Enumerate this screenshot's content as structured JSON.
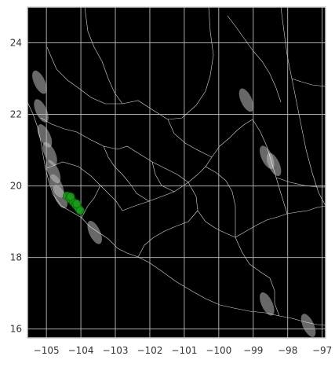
{
  "map": {
    "background_color": "#000000",
    "frame_color": "#cccccc",
    "grid_color": "#bdbdbd",
    "boundary_color": "#ffffff",
    "marker_color": "#1a9e1a",
    "lon_range": [
      -105.55,
      -96.9
    ],
    "lat_range": [
      15.75,
      25.0
    ],
    "x_ticks": [
      {
        "value": -105,
        "label": "−105"
      },
      {
        "value": -104,
        "label": "−104"
      },
      {
        "value": -103,
        "label": "−103"
      },
      {
        "value": -102,
        "label": "−102"
      },
      {
        "value": -101,
        "label": "−101"
      },
      {
        "value": -100,
        "label": "−100"
      },
      {
        "value": -99,
        "label": "−99"
      },
      {
        "value": -98,
        "label": "−98"
      },
      {
        "value": -97,
        "label": "−97"
      }
    ],
    "y_ticks": [
      {
        "value": 16,
        "label": "16"
      },
      {
        "value": 18,
        "label": "18"
      },
      {
        "value": 20,
        "label": "20"
      },
      {
        "value": 22,
        "label": "22"
      },
      {
        "value": 24,
        "label": "24"
      }
    ],
    "occurrence_points": [
      [
        -104.4,
        19.72
      ],
      [
        -104.33,
        19.66
      ],
      [
        -104.27,
        19.6
      ],
      [
        -104.22,
        19.55
      ],
      [
        -104.18,
        19.52
      ],
      [
        -104.15,
        19.47
      ],
      [
        -104.1,
        19.42
      ],
      [
        -104.06,
        19.36
      ],
      [
        -104.02,
        19.31
      ],
      [
        -104.3,
        19.7
      ],
      [
        -104.12,
        19.5
      ]
    ],
    "bright_patches": [
      [
        -105.2,
        22.9
      ],
      [
        -105.15,
        22.1
      ],
      [
        -105.05,
        21.4
      ],
      [
        -104.9,
        20.9
      ],
      [
        -104.8,
        20.4
      ],
      [
        -104.7,
        20.0
      ],
      [
        -104.6,
        19.7
      ],
      [
        -103.6,
        18.7
      ],
      [
        -98.6,
        20.8
      ],
      [
        -98.4,
        20.6
      ],
      [
        -99.2,
        22.4
      ],
      [
        -98.6,
        16.7
      ],
      [
        -97.4,
        16.1
      ]
    ]
  }
}
